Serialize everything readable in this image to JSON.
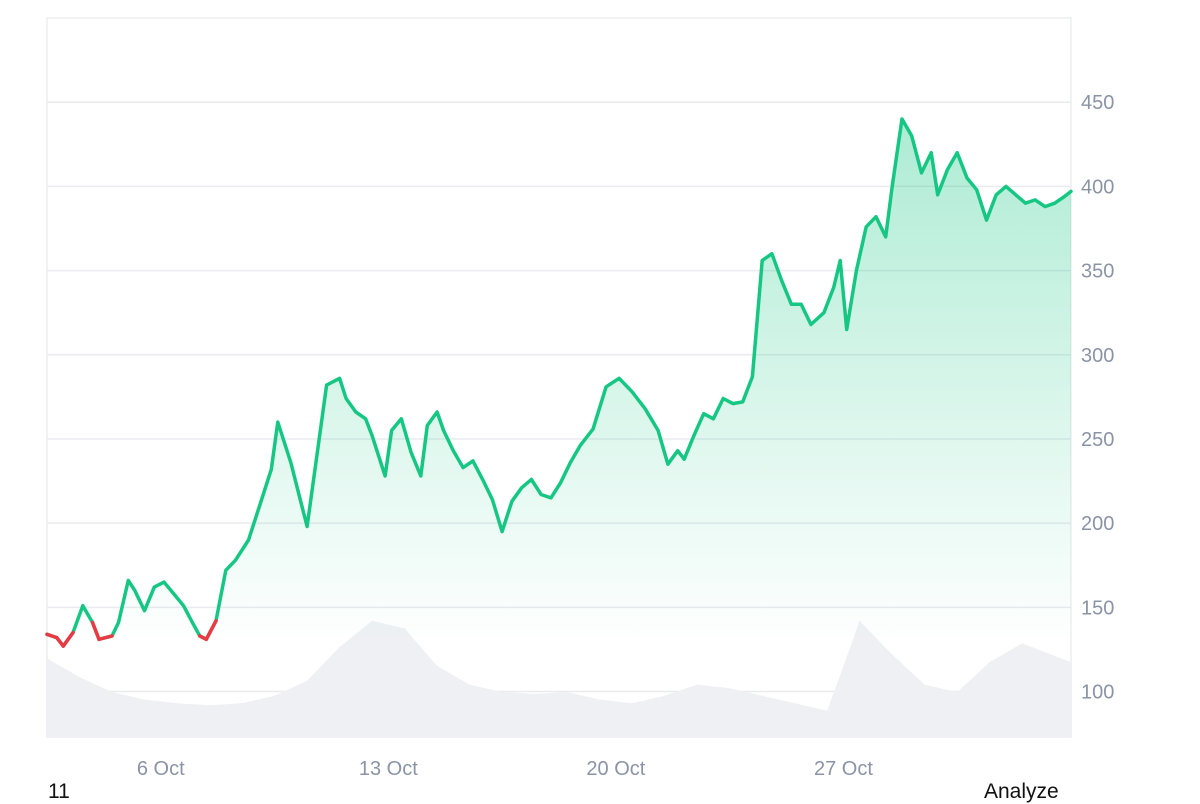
{
  "footer": {
    "left_text": "11",
    "right_text": "Analyze"
  },
  "colors": {
    "line_up": "#16c784",
    "line_down": "#ea3943",
    "area_fill": "#16c784",
    "volume": "#eef0f4",
    "grid": "#e9ebef",
    "border": "#e2e5ea",
    "tick_text": "#8a94a6"
  },
  "chart_data": {
    "type": "area",
    "title": "",
    "xlabel": "",
    "ylabel": "",
    "x_tick_labels": [
      "6 Oct",
      "13 Oct",
      "20 Oct",
      "27 Oct"
    ],
    "y_tick_labels": [
      "100",
      "150",
      "200",
      "250",
      "300",
      "350",
      "400",
      "450"
    ],
    "y_ticks": [
      100,
      150,
      200,
      250,
      300,
      350,
      400,
      450
    ],
    "ylim": [
      73,
      500
    ],
    "xlim": [
      0,
      31.5
    ],
    "x_ticks": [
      3.5,
      10.5,
      17.5,
      24.5
    ],
    "baseline": 133,
    "y_axis_position": "right",
    "grid": "horizontal",
    "series": [
      {
        "type": "line",
        "x": [
          0,
          0.3,
          0.5,
          0.8,
          1.1,
          1.4,
          1.6,
          2.0,
          2.2,
          2.5,
          2.7,
          3.0,
          3.3,
          3.6,
          3.9,
          4.2,
          4.5,
          4.7,
          4.9,
          5.2,
          5.5,
          5.8,
          6.2,
          6.6,
          6.9,
          7.1,
          7.5,
          8.0,
          8.6,
          9.0,
          9.2,
          9.5,
          9.8,
          10.0,
          10.2,
          10.4,
          10.6,
          10.9,
          11.2,
          11.5,
          11.7,
          12.0,
          12.2,
          12.5,
          12.8,
          13.1,
          13.4,
          13.7,
          14.0,
          14.3,
          14.6,
          14.9,
          15.2,
          15.5,
          15.8,
          16.1,
          16.4,
          16.8,
          17.2,
          17.6,
          18.0,
          18.4,
          18.8,
          19.1,
          19.4,
          19.6,
          19.9,
          20.2,
          20.5,
          20.8,
          21.1,
          21.4,
          21.7,
          22.0,
          22.3,
          22.6,
          22.9,
          23.2,
          23.5,
          23.9,
          24.2,
          24.4,
          24.6,
          24.9,
          25.2,
          25.5,
          25.8,
          26.0,
          26.3,
          26.6,
          26.9,
          27.2,
          27.4,
          27.7,
          28.0,
          28.3,
          28.6,
          28.9,
          29.2,
          29.5,
          29.8,
          30.1,
          30.4,
          30.7,
          31.0,
          31.3,
          31.5
        ],
        "values": [
          134,
          132,
          127,
          135,
          151,
          141,
          131,
          133,
          141,
          166,
          160,
          148,
          162,
          165,
          158,
          151,
          140,
          133,
          131,
          142,
          172,
          178,
          190,
          214,
          232,
          260,
          236,
          198,
          282,
          286,
          274,
          266,
          262,
          252,
          240,
          228,
          255,
          262,
          242,
          228,
          258,
          266,
          255,
          243,
          233,
          237,
          226,
          214,
          195,
          213,
          221,
          226,
          217,
          215,
          224,
          236,
          246,
          256,
          281,
          286,
          278,
          268,
          255,
          235,
          243,
          238,
          252,
          265,
          262,
          274,
          271,
          272,
          287,
          356,
          360,
          344,
          330,
          330,
          318,
          325,
          340,
          356,
          315,
          350,
          376,
          382,
          370,
          400,
          440,
          430,
          408,
          420,
          395,
          410,
          420,
          405,
          398,
          380,
          395,
          400,
          395,
          390,
          392,
          388,
          390,
          394,
          397
        ]
      },
      {
        "type": "bar",
        "name": "",
        "x": [
          0,
          1,
          2,
          3,
          4,
          5,
          6,
          7,
          8,
          9,
          10,
          11,
          12,
          13,
          14,
          15,
          16,
          17,
          18,
          19,
          20,
          21,
          22,
          23,
          24,
          25,
          26,
          27,
          28,
          29,
          30,
          31.5
        ],
        "values": [
          0.42,
          0.32,
          0.24,
          0.2,
          0.18,
          0.17,
          0.18,
          0.22,
          0.3,
          0.48,
          0.62,
          0.58,
          0.38,
          0.28,
          0.24,
          0.23,
          0.24,
          0.2,
          0.18,
          0.22,
          0.28,
          0.26,
          0.22,
          0.18,
          0.14,
          0.62,
          0.44,
          0.28,
          0.24,
          0.4,
          0.5,
          0.4
        ]
      }
    ]
  }
}
